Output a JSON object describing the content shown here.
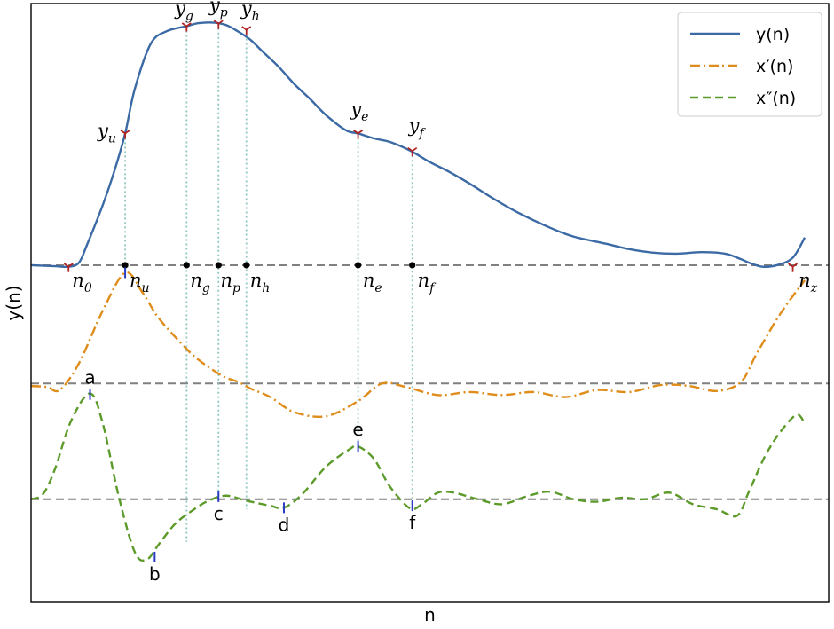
{
  "chart_data": {
    "type": "line",
    "xlabel": "n",
    "ylabel": "y(n)",
    "xlim": [
      0,
      100
    ],
    "ylim": [
      -6.7,
      5.2
    ],
    "grid": false,
    "legend_position": "top-right",
    "baselines": [
      0,
      -2.35,
      -4.65
    ],
    "series": [
      {
        "name": "y(n)",
        "color": "#3b6aa5",
        "style": "solid",
        "x": [
          0,
          3,
          4.7,
          6,
          7,
          9,
          10.5,
          11.8,
          13,
          15,
          17,
          19.5,
          21,
          23,
          24.5,
          26,
          27.5,
          29,
          31,
          33,
          35,
          37,
          39.5,
          41,
          43,
          45,
          47.5,
          50,
          52.5,
          55,
          58,
          61,
          65,
          68,
          72,
          75,
          78,
          81,
          84,
          87,
          89,
          90,
          91.7,
          93.5,
          95.5,
          97
        ],
        "y": [
          0,
          -0.02,
          -0.03,
          0.05,
          0.4,
          1.2,
          1.9,
          2.62,
          3.5,
          4.4,
          4.65,
          4.75,
          4.81,
          4.82,
          4.77,
          4.64,
          4.48,
          4.25,
          3.95,
          3.6,
          3.3,
          2.98,
          2.68,
          2.62,
          2.52,
          2.45,
          2.28,
          2.05,
          1.85,
          1.62,
          1.32,
          1.05,
          0.75,
          0.57,
          0.43,
          0.32,
          0.25,
          0.23,
          0.26,
          0.23,
          0.12,
          0.05,
          -0.03,
          0.0,
          0.15,
          0.55
        ]
      },
      {
        "name": "x′(n)",
        "color": "#de8c1a",
        "style": "dashdot",
        "x": [
          0,
          2,
          3.6,
          6,
          9,
          11.8,
          14,
          16,
          19,
          21,
          24,
          26,
          27.5,
          30,
          33,
          37,
          41,
          44,
          47,
          51,
          55,
          59,
          63,
          67,
          71,
          75,
          79,
          82.5,
          86,
          89,
          91,
          94,
          97
        ],
        "y": [
          -2.4,
          -2.42,
          -2.48,
          -1.95,
          -0.9,
          -0.15,
          -0.55,
          -1.05,
          -1.58,
          -1.88,
          -2.2,
          -2.32,
          -2.45,
          -2.62,
          -2.92,
          -3.0,
          -2.7,
          -2.35,
          -2.42,
          -2.58,
          -2.52,
          -2.58,
          -2.52,
          -2.62,
          -2.48,
          -2.52,
          -2.38,
          -2.4,
          -2.5,
          -2.32,
          -1.75,
          -0.95,
          -0.3
        ]
      },
      {
        "name": "x″(n)",
        "color": "#5c9a2a",
        "style": "dashed",
        "x": [
          0,
          1.5,
          3,
          5,
          7.4,
          9,
          11,
          13,
          14.5,
          16,
          18,
          20,
          22,
          24.4,
          27,
          30,
          31.7,
          34,
          37,
          40,
          41,
          43,
          45,
          47.5,
          49,
          51,
          53,
          56,
          59,
          62,
          65,
          68,
          71,
          74,
          77,
          80,
          83,
          86,
          88.5,
          90,
          92,
          94,
          96,
          97
        ],
        "y": [
          -4.65,
          -4.55,
          -4.05,
          -3.1,
          -2.55,
          -3.15,
          -4.6,
          -5.7,
          -5.85,
          -5.55,
          -5.15,
          -4.9,
          -4.7,
          -4.58,
          -4.68,
          -4.78,
          -4.82,
          -4.55,
          -4.0,
          -3.65,
          -3.6,
          -3.85,
          -4.4,
          -4.83,
          -4.75,
          -4.52,
          -4.52,
          -4.65,
          -4.75,
          -4.6,
          -4.5,
          -4.65,
          -4.7,
          -4.62,
          -4.65,
          -4.52,
          -4.75,
          -4.85,
          -4.98,
          -4.5,
          -3.8,
          -3.3,
          -2.97,
          -3.15
        ]
      }
    ],
    "guide_lines": [
      {
        "x": 11.8,
        "y_top": 2.62,
        "y_bottom": -0.15
      },
      {
        "x": 19.5,
        "y_top": 4.75,
        "y_bottom": -5.5
      },
      {
        "x": 23.5,
        "y_top": 4.8,
        "y_bottom": -4.65
      },
      {
        "x": 27.0,
        "y_top": 4.68,
        "y_bottom": -4.85
      },
      {
        "x": 41.0,
        "y_top": 2.62,
        "y_bottom": -3.58
      },
      {
        "x": 47.8,
        "y_top": 2.27,
        "y_bottom": -4.78
      }
    ],
    "y_markers": [
      {
        "x": 4.7,
        "y": -0.03
      },
      {
        "x": 11.8,
        "y": 2.62
      },
      {
        "x": 19.5,
        "y": 4.75
      },
      {
        "x": 23.5,
        "y": 4.8
      },
      {
        "x": 27.0,
        "y": 4.68
      },
      {
        "x": 41.0,
        "y": 2.62
      },
      {
        "x": 47.8,
        "y": 2.27
      },
      {
        "x": 95.5,
        "y": -0.03
      }
    ],
    "y_point_labels": [
      {
        "text": "y",
        "sub": "u",
        "x": 9.5,
        "y": 2.62
      },
      {
        "text": "y",
        "sub": "g",
        "x": 19.2,
        "y": 5.05
      },
      {
        "text": "y",
        "sub": "p",
        "x": 23.5,
        "y": 5.12
      },
      {
        "text": "y",
        "sub": "h",
        "x": 27.5,
        "y": 5.05
      },
      {
        "text": "y",
        "sub": "e",
        "x": 41.2,
        "y": 3.05
      },
      {
        "text": "y",
        "sub": "f",
        "x": 48.3,
        "y": 2.72
      }
    ],
    "baseline_dots": [
      11.8,
      19.5,
      23.5,
      27.0,
      41.0,
      47.8
    ],
    "n_labels": [
      {
        "text": "n",
        "sub": "0",
        "x": 6.4
      },
      {
        "text": "n",
        "sub": "u",
        "x": 13.6
      },
      {
        "text": "n",
        "sub": "g",
        "x": 21.2
      },
      {
        "text": "n",
        "sub": "p",
        "x": 25.0
      },
      {
        "text": "n",
        "sub": "h",
        "x": 28.7
      },
      {
        "text": "n",
        "sub": "e",
        "x": 42.8
      },
      {
        "text": "n",
        "sub": "f",
        "x": 49.5
      },
      {
        "text": "n",
        "sub": "z",
        "x": 97.4
      }
    ],
    "xprime_markers": [
      {
        "x": 11.8,
        "y": -0.15
      }
    ],
    "letter_points": [
      {
        "label": "a",
        "x": 7.4,
        "y": -2.57,
        "label_pos": "above"
      },
      {
        "label": "b",
        "x": 15.5,
        "y": -5.8,
        "label_pos": "below"
      },
      {
        "label": "c",
        "x": 23.5,
        "y": -4.6,
        "label_pos": "below"
      },
      {
        "label": "d",
        "x": 31.7,
        "y": -4.82,
        "label_pos": "below"
      },
      {
        "label": "e",
        "x": 41.0,
        "y": -3.6,
        "label_pos": "above"
      },
      {
        "label": "f",
        "x": 47.8,
        "y": -4.78,
        "label_pos": "below"
      }
    ]
  }
}
